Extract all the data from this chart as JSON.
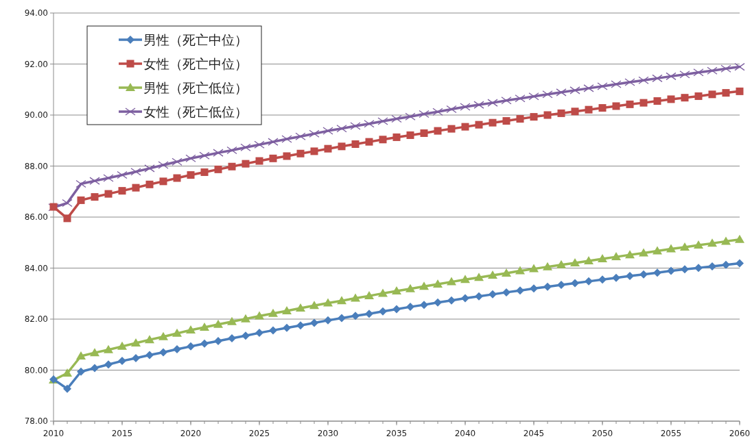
{
  "chart_data": {
    "type": "line",
    "x": [
      2010,
      2011,
      2012,
      2013,
      2014,
      2015,
      2016,
      2017,
      2018,
      2019,
      2020,
      2021,
      2022,
      2023,
      2024,
      2025,
      2026,
      2027,
      2028,
      2029,
      2030,
      2031,
      2032,
      2033,
      2034,
      2035,
      2036,
      2037,
      2038,
      2039,
      2040,
      2041,
      2042,
      2043,
      2044,
      2045,
      2046,
      2047,
      2048,
      2049,
      2050,
      2051,
      2052,
      2053,
      2054,
      2055,
      2056,
      2057,
      2058,
      2059,
      2060
    ],
    "series": [
      {
        "name": "男性（死亡中位）",
        "color": "#4a7ebb",
        "marker": "diamond",
        "values": [
          79.64,
          79.27,
          79.94,
          80.08,
          80.22,
          80.36,
          80.47,
          80.59,
          80.7,
          80.82,
          80.93,
          81.04,
          81.14,
          81.25,
          81.35,
          81.46,
          81.56,
          81.66,
          81.75,
          81.85,
          81.95,
          82.04,
          82.13,
          82.21,
          82.3,
          82.39,
          82.48,
          82.56,
          82.65,
          82.73,
          82.82,
          82.89,
          82.97,
          83.05,
          83.12,
          83.2,
          83.27,
          83.34,
          83.41,
          83.48,
          83.55,
          83.62,
          83.69,
          83.75,
          83.82,
          83.89,
          83.95,
          84.01,
          84.07,
          84.13,
          84.19
        ]
      },
      {
        "name": "女性（死亡中位）",
        "color": "#be4b48",
        "marker": "square",
        "values": [
          86.4,
          85.95,
          86.66,
          86.79,
          86.91,
          87.03,
          87.15,
          87.28,
          87.4,
          87.53,
          87.65,
          87.76,
          87.87,
          87.98,
          88.09,
          88.2,
          88.3,
          88.39,
          88.49,
          88.58,
          88.68,
          88.77,
          88.86,
          88.95,
          89.04,
          89.13,
          89.21,
          89.29,
          89.38,
          89.46,
          89.54,
          89.62,
          89.7,
          89.77,
          89.85,
          89.93,
          90.0,
          90.07,
          90.14,
          90.21,
          90.28,
          90.35,
          90.42,
          90.48,
          90.55,
          90.62,
          90.68,
          90.74,
          90.81,
          90.87,
          90.93
        ]
      },
      {
        "name": "男性（死亡低位）",
        "color": "#98b954",
        "marker": "triangle",
        "values": [
          79.61,
          79.88,
          80.55,
          80.68,
          80.8,
          80.93,
          81.06,
          81.19,
          81.31,
          81.44,
          81.57,
          81.68,
          81.79,
          81.9,
          82.01,
          82.12,
          82.22,
          82.32,
          82.43,
          82.53,
          82.63,
          82.72,
          82.82,
          82.91,
          83.01,
          83.1,
          83.19,
          83.28,
          83.37,
          83.46,
          83.55,
          83.63,
          83.72,
          83.8,
          83.89,
          83.97,
          84.05,
          84.13,
          84.2,
          84.28,
          84.36,
          84.44,
          84.52,
          84.59,
          84.67,
          84.75,
          84.82,
          84.9,
          84.97,
          85.05,
          85.12
        ]
      },
      {
        "name": "女性（死亡低位）",
        "color": "#7d5fa0",
        "marker": "cross",
        "values": [
          86.38,
          86.55,
          87.3,
          87.42,
          87.53,
          87.65,
          87.78,
          87.91,
          88.04,
          88.17,
          88.3,
          88.41,
          88.52,
          88.62,
          88.73,
          88.84,
          88.95,
          89.06,
          89.16,
          89.27,
          89.38,
          89.47,
          89.57,
          89.66,
          89.76,
          89.85,
          89.94,
          90.04,
          90.13,
          90.23,
          90.32,
          90.4,
          90.48,
          90.57,
          90.65,
          90.73,
          90.81,
          90.89,
          90.97,
          91.05,
          91.13,
          91.21,
          91.29,
          91.36,
          91.44,
          91.52,
          91.59,
          91.67,
          91.74,
          91.82,
          91.89
        ]
      }
    ],
    "xlim": [
      2010,
      2060
    ],
    "xticks": [
      2010,
      2015,
      2020,
      2025,
      2030,
      2035,
      2040,
      2045,
      2050,
      2055,
      2060
    ],
    "ylim": [
      78,
      94
    ],
    "yticks": [
      {
        "value": 78,
        "label": "78.00"
      },
      {
        "value": 80,
        "label": "80.00"
      },
      {
        "value": 82,
        "label": "82.00"
      },
      {
        "value": 84,
        "label": "84.00"
      },
      {
        "value": 86,
        "label": "86.00"
      },
      {
        "value": 88,
        "label": "88.00"
      },
      {
        "value": 90,
        "label": "90.00"
      },
      {
        "value": 92,
        "label": "92.00"
      },
      {
        "value": 94,
        "label": "94.00"
      }
    ],
    "grid": "y",
    "legend": "top left",
    "line_style": "solid"
  }
}
